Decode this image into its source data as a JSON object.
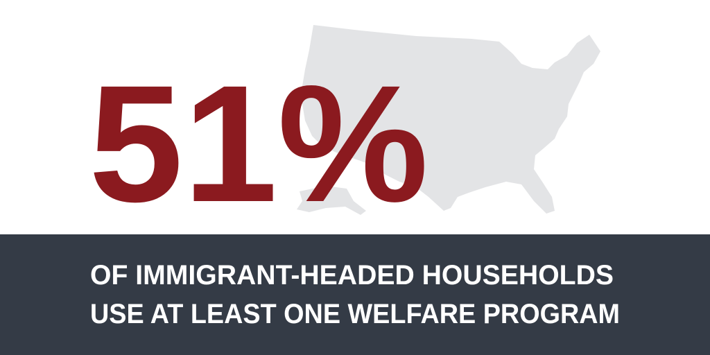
{
  "stat": "51%",
  "caption": [
    "OF IMMIGRANT-HEADED HOUSEHOLDS",
    "USE AT LEAST ONE WELFARE PROGRAM"
  ]
}
